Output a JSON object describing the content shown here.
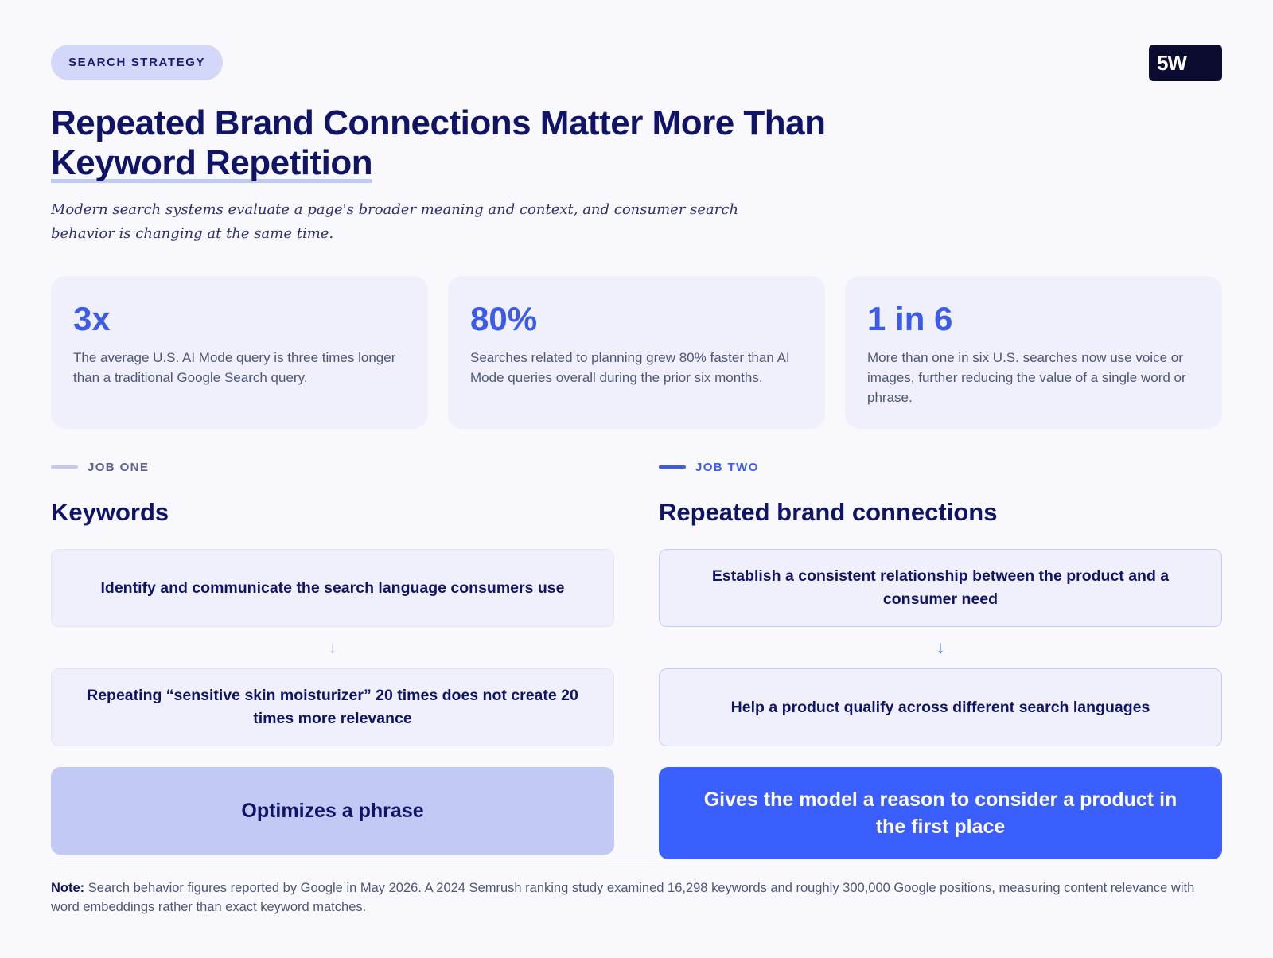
{
  "header": {
    "tag": "SEARCH STRATEGY",
    "logo": "5W",
    "title_line1": "Repeated Brand Connections Matter More Than",
    "title_line2": "Keyword Repetition",
    "subtitle": "Modern search systems evaluate a page's broader meaning and context, and consumer search behavior is changing at the same time."
  },
  "stats": [
    {
      "value": "3x",
      "text": "The average U.S. AI Mode query is three times longer than a traditional Google Search query."
    },
    {
      "value": "80%",
      "text": "Searches related to planning grew 80% faster than AI Mode queries overall during the prior six months."
    },
    {
      "value": "1 in 6",
      "text": "More than one in six U.S. searches now use voice or images, further reducing the value of a single word or phrase."
    }
  ],
  "job_one": {
    "label": "JOB ONE",
    "title": "Keywords",
    "step1": "Identify and communicate the search language consumers use",
    "arrow": "↓",
    "step2": "Repeating “sensitive skin moisturizer” 20 times does not create 20 times more relevance",
    "result": "Optimizes a phrase"
  },
  "job_two": {
    "label": "JOB TWO",
    "title": "Repeated brand connections",
    "step1": "Establish a consistent relationship between the product and a consumer need",
    "arrow": "↓",
    "step2": "Help a product qualify across different search languages",
    "result": "Gives the model a reason to consider a product in the first place"
  },
  "footer": {
    "note_label": "Note:",
    "note_text": " Search behavior figures reported by Google in May 2026. A 2024 Semrush ranking study examined 16,298 keywords and roughly 300,000 Google positions, measuring content relevance with word embeddings rather than exact keyword matches."
  },
  "colors": {
    "accent": "#3b5be8",
    "navy": "#0f1466",
    "pill_bg": "#d3d8fa",
    "card_bg": "#eff0fb",
    "result_primary": "#3b5fff",
    "result_secondary": "#c3c9f5"
  }
}
